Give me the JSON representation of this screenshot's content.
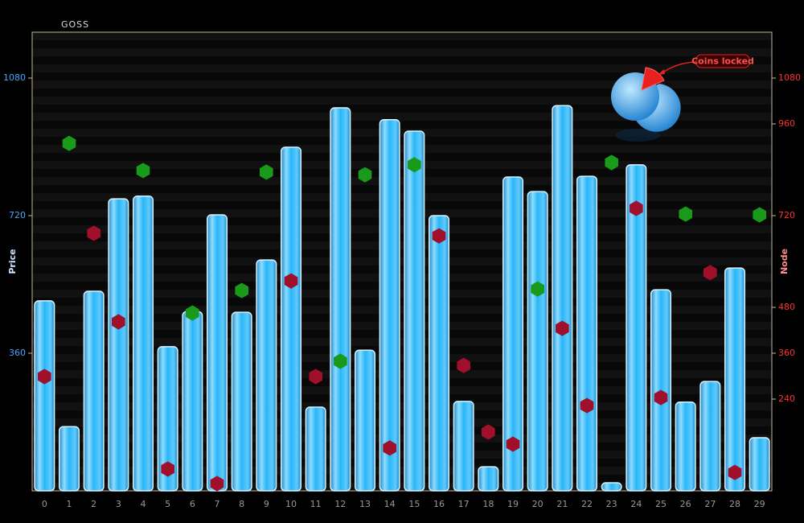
{
  "chart_data": {
    "type": "bar",
    "title": "GOSS",
    "y_label": "Price",
    "y2_label": "Node",
    "annotation": "Coins locked",
    "categories": [
      "0",
      "1",
      "2",
      "3",
      "4",
      "5",
      "6",
      "7",
      "8",
      "9",
      "10",
      "11",
      "12",
      "13",
      "14",
      "15",
      "16",
      "17",
      "18",
      "19",
      "20",
      "21",
      "22",
      "23",
      "24",
      "25",
      "26",
      "27",
      "28",
      "29"
    ],
    "ylim": [
      0,
      1200
    ],
    "yticks": [
      360,
      720,
      1080
    ],
    "y2lim": [
      0,
      1200
    ],
    "y2ticks": [
      240,
      360,
      480,
      720,
      960,
      1080
    ],
    "series": [
      {
        "type": "bar",
        "color": "#29b6f6",
        "values": [
          497,
          168,
          522,
          764,
          771,
          377,
          469,
          722,
          467,
          604,
          899,
          219,
          1002,
          368,
          971,
          941,
          720,
          234,
          63,
          821,
          783,
          1008,
          823,
          21,
          853,
          526,
          232,
          286,
          583,
          139
        ]
      },
      {
        "type": "hexagon",
        "color": "#1a9a1a",
        "values": [
          null,
          909,
          null,
          null,
          838,
          null,
          465,
          null,
          524,
          834,
          null,
          null,
          339,
          827,
          null,
          853,
          null,
          null,
          null,
          null,
          528,
          null,
          null,
          859,
          null,
          null,
          724,
          null,
          null,
          722
        ]
      },
      {
        "type": "hexagon",
        "color": "#a0102a",
        "axis": "y2",
        "values": [
          299,
          null,
          674,
          442,
          null,
          57,
          null,
          19,
          null,
          null,
          549,
          299,
          null,
          null,
          112,
          null,
          667,
          328,
          154,
          122,
          null,
          425,
          223,
          null,
          739,
          244,
          null,
          571,
          48,
          null
        ]
      }
    ]
  }
}
